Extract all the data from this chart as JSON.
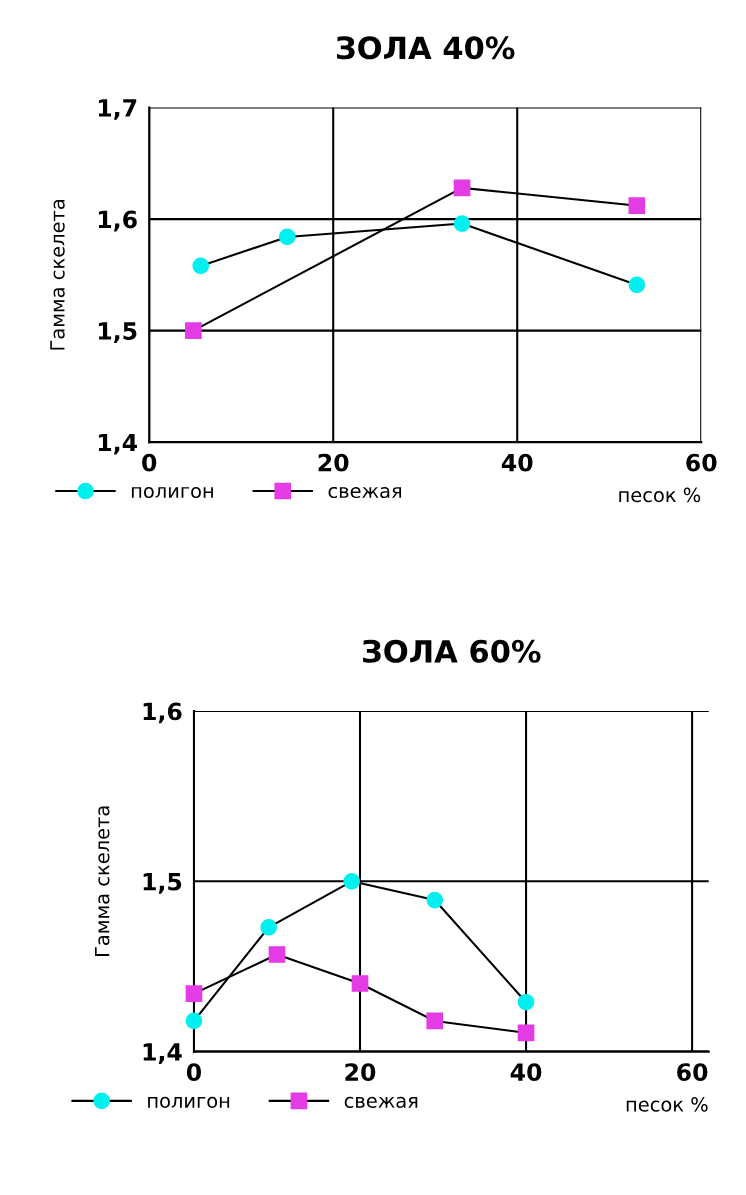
{
  "chart_data": [
    {
      "type": "line",
      "title": "ЗОЛА 40%",
      "xlabel": "песок %",
      "ylabel": "Гамма скелета",
      "line_style": "solid",
      "grid": true,
      "legend": "bottom left",
      "xlim": [
        0,
        60
      ],
      "xticks": [
        0,
        20,
        40,
        60
      ],
      "ylim": [
        1.4,
        1.7
      ],
      "yticks": [
        {
          "value": 1.4,
          "label": "1,4"
        },
        {
          "value": 1.5,
          "label": "1,5"
        },
        {
          "value": 1.6,
          "label": "1,6"
        },
        {
          "value": 1.7,
          "label": "1,7"
        }
      ],
      "series": [
        {
          "name": "полигон",
          "color": "#00f0f0",
          "marker": "circle",
          "x": [
            5.6,
            15,
            34,
            53
          ],
          "values": [
            1.558,
            1.584,
            1.596,
            1.541
          ]
        },
        {
          "name": "свежая",
          "color": "#e43ce4",
          "marker": "square",
          "x": [
            4.8,
            34,
            53
          ],
          "values": [
            1.5,
            1.628,
            1.612
          ]
        }
      ]
    },
    {
      "type": "line",
      "title": "ЗОЛА 60%",
      "xlabel": "песок %",
      "ylabel": "Гамма скелета",
      "line_style": "solid",
      "grid": true,
      "legend": "bottom left",
      "xlim": [
        0,
        62
      ],
      "xticks": [
        0,
        20,
        40,
        60
      ],
      "ylim": [
        1.4,
        1.6
      ],
      "yticks": [
        {
          "value": 1.4,
          "label": "1,4"
        },
        {
          "value": 1.5,
          "label": "1,5"
        },
        {
          "value": 1.6,
          "label": "1,6"
        }
      ],
      "series": [
        {
          "name": "полигон",
          "color": "#00f0f0",
          "marker": "circle",
          "x": [
            0,
            9,
            19,
            29,
            40
          ],
          "values": [
            1.418,
            1.473,
            1.5,
            1.489,
            1.429
          ]
        },
        {
          "name": "свежая",
          "color": "#e43ce4",
          "marker": "square",
          "x": [
            0,
            10,
            20,
            29,
            40
          ],
          "values": [
            1.434,
            1.457,
            1.44,
            1.418,
            1.411
          ]
        }
      ]
    }
  ]
}
